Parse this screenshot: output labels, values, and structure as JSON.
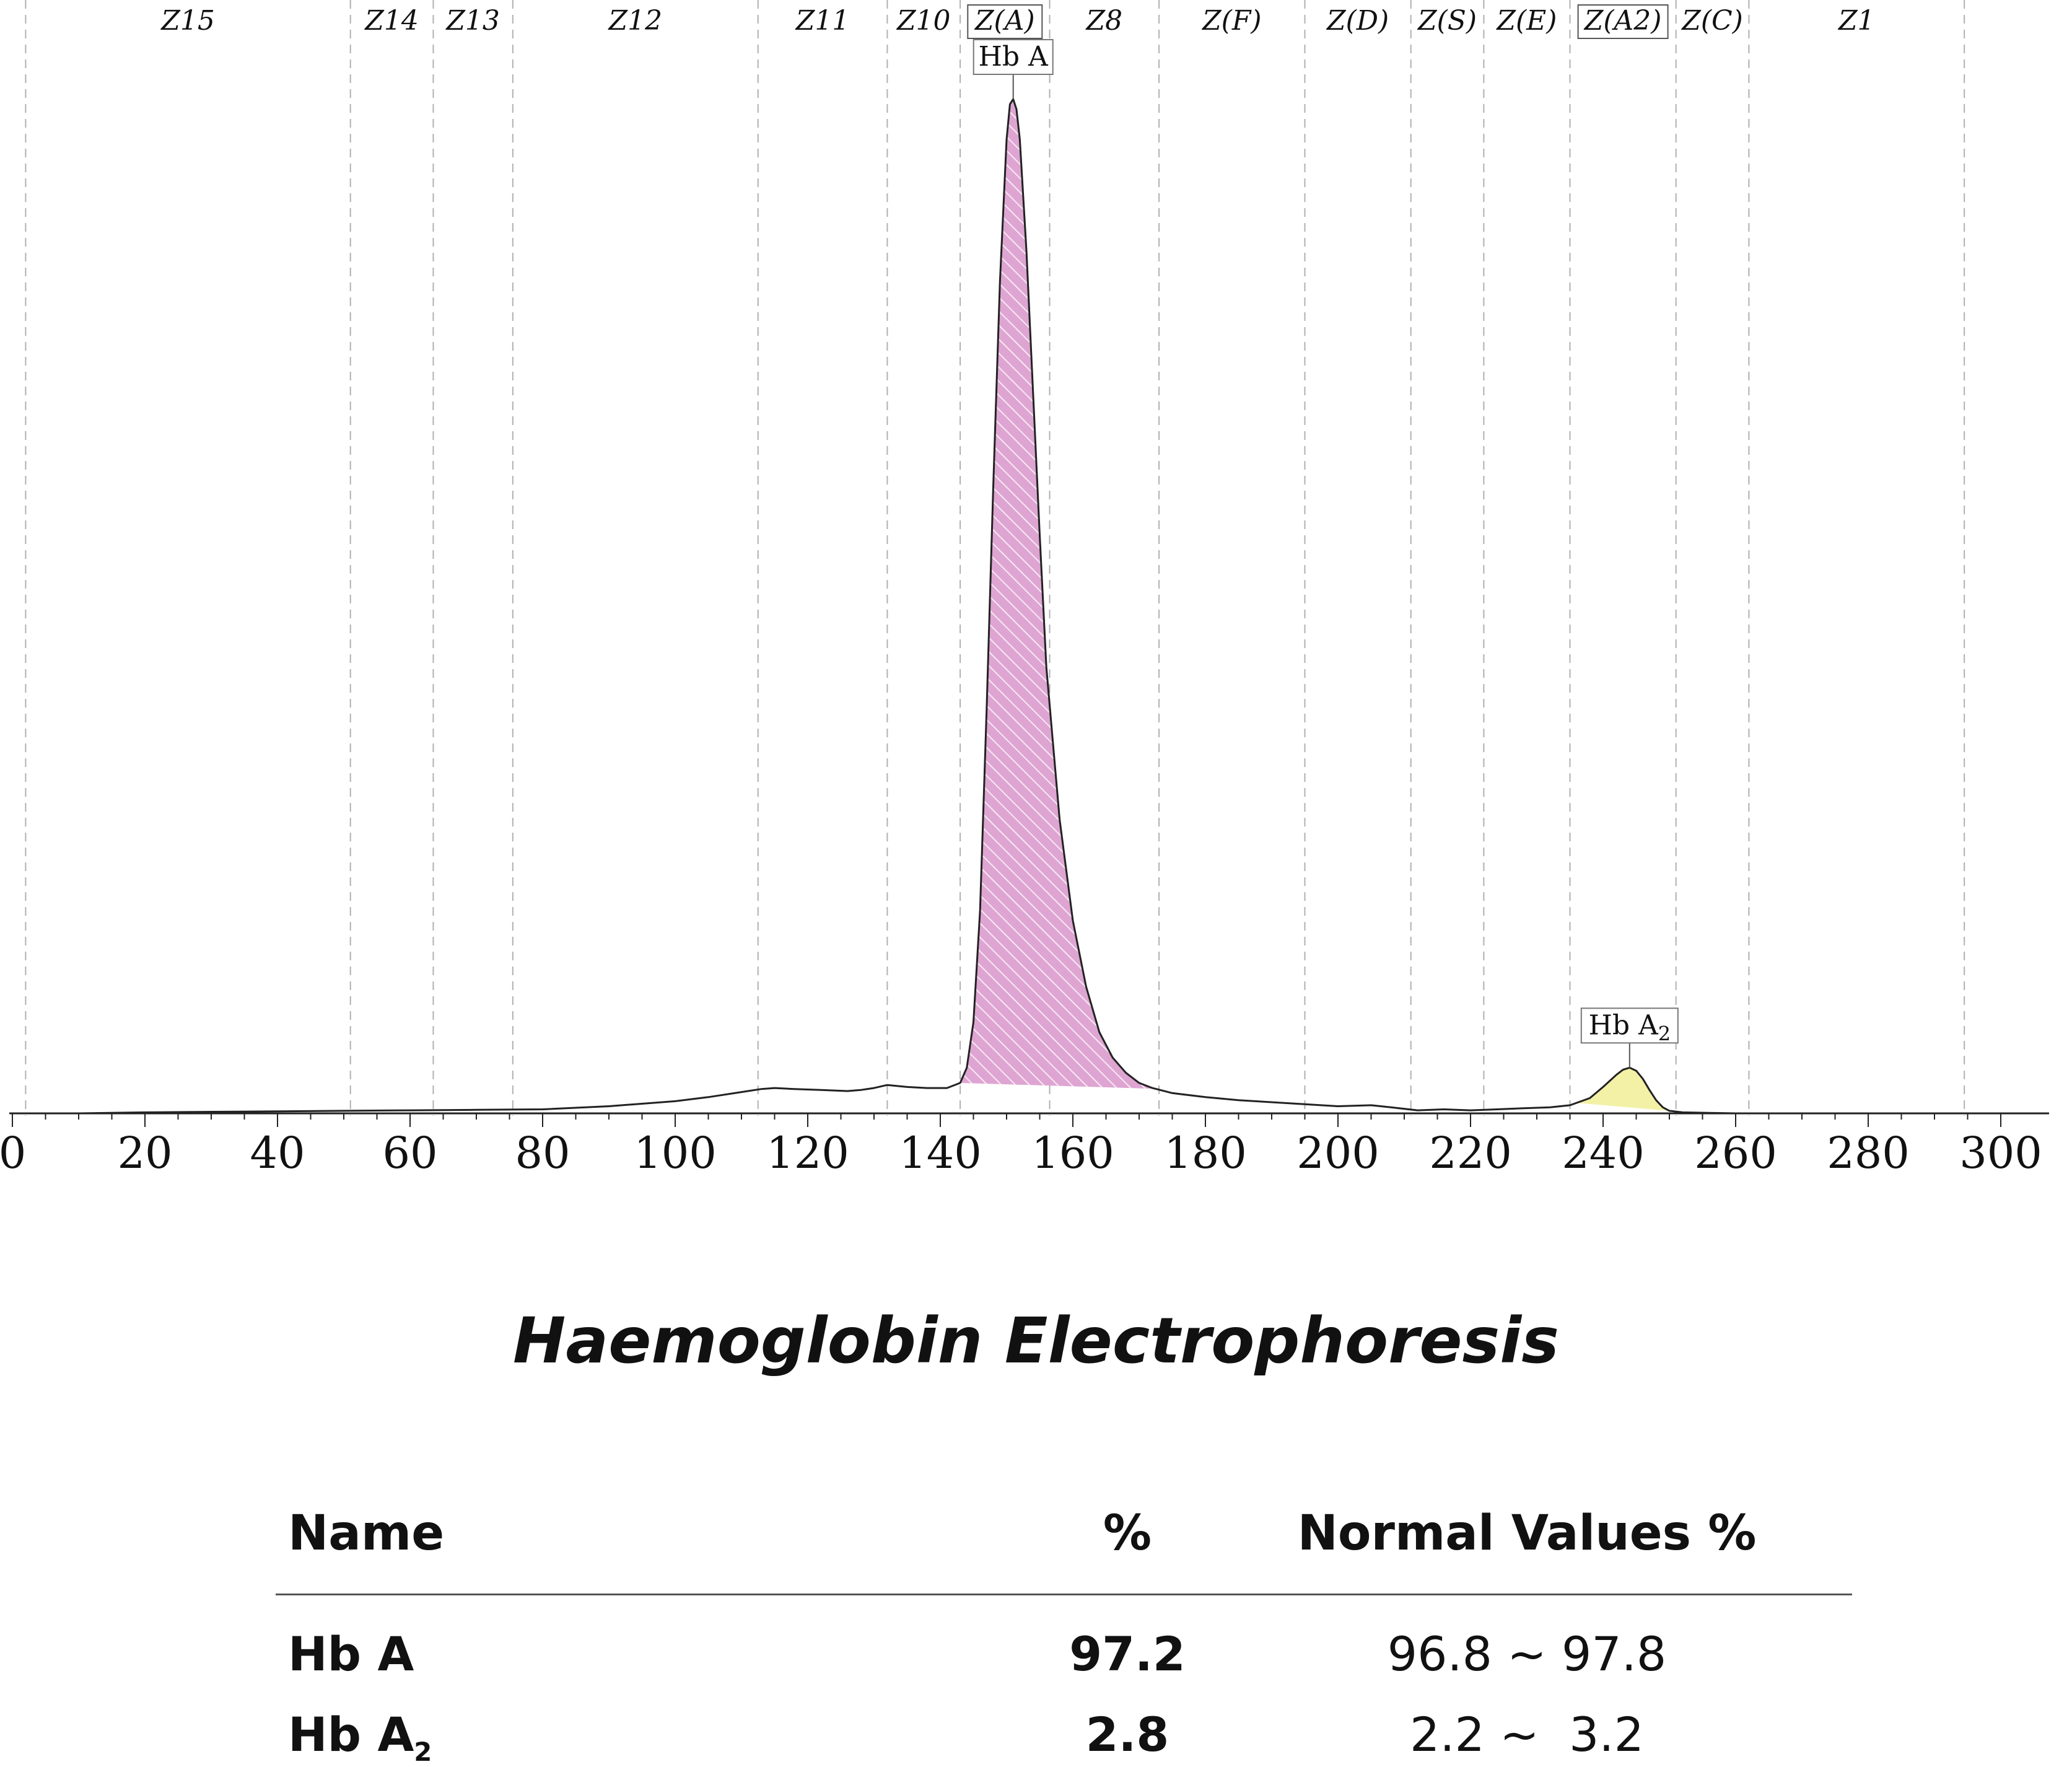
{
  "chart_data": {
    "type": "line",
    "title": "",
    "xlabel": "",
    "ylabel": "",
    "xlim": [
      0,
      305
    ],
    "ylim": [
      0,
      100
    ],
    "x_ticks": [
      0,
      20,
      40,
      60,
      80,
      100,
      120,
      140,
      160,
      180,
      200,
      220,
      240,
      260,
      280,
      300
    ],
    "zones": [
      {
        "label": "Z15",
        "from": 2,
        "to": 51,
        "boxed": false
      },
      {
        "label": "Z14",
        "from": 51,
        "to": 63.5,
        "boxed": false
      },
      {
        "label": "Z13",
        "from": 63.5,
        "to": 75.5,
        "boxed": false
      },
      {
        "label": "Z12",
        "from": 75.5,
        "to": 112.5,
        "boxed": false
      },
      {
        "label": "Z11",
        "from": 112.5,
        "to": 132,
        "boxed": false
      },
      {
        "label": "Z10",
        "from": 132,
        "to": 143,
        "boxed": false
      },
      {
        "label": "Z(A)",
        "from": 143,
        "to": 156.5,
        "boxed": true
      },
      {
        "label": "Z8",
        "from": 156.5,
        "to": 173,
        "boxed": false
      },
      {
        "label": "Z(F)",
        "from": 173,
        "to": 195,
        "boxed": false
      },
      {
        "label": "Z(D)",
        "from": 195,
        "to": 211,
        "boxed": false
      },
      {
        "label": "Z(S)",
        "from": 211,
        "to": 222,
        "boxed": false
      },
      {
        "label": "Z(E)",
        "from": 222,
        "to": 235,
        "boxed": false
      },
      {
        "label": "Z(A2)",
        "from": 235,
        "to": 251,
        "boxed": true
      },
      {
        "label": "Z(C)",
        "from": 251,
        "to": 262,
        "boxed": false
      },
      {
        "label": "Z1",
        "from": 262,
        "to": 294.5,
        "boxed": false
      }
    ],
    "series": [
      {
        "x": [
          10,
          20,
          30,
          40,
          50,
          60,
          70,
          80,
          90,
          100,
          105,
          110,
          113,
          115,
          118,
          122,
          126,
          128,
          130,
          132,
          135,
          138,
          141,
          143,
          144,
          145,
          146,
          147,
          148,
          149,
          150,
          150.5,
          151,
          151.5,
          152,
          153,
          154,
          155,
          156,
          158,
          160,
          162,
          164,
          166,
          168,
          170,
          172,
          175,
          180,
          185,
          190,
          195,
          200,
          205,
          208,
          212,
          216,
          220,
          224,
          228,
          232,
          235,
          238,
          240,
          242,
          243,
          244,
          245,
          246,
          247,
          248,
          249,
          250,
          252,
          256,
          260,
          270,
          280,
          290,
          300
        ],
        "y": [
          0,
          0.1,
          0.15,
          0.2,
          0.25,
          0.3,
          0.35,
          0.4,
          0.7,
          1.2,
          1.6,
          2.1,
          2.4,
          2.5,
          2.4,
          2.3,
          2.2,
          2.3,
          2.5,
          2.8,
          2.6,
          2.5,
          2.5,
          3,
          4.5,
          9,
          20,
          40,
          62,
          82,
          96,
          99.5,
          100,
          99,
          96,
          85,
          71,
          57,
          44,
          29,
          19,
          12.5,
          8,
          5.5,
          4,
          3,
          2.5,
          2,
          1.6,
          1.3,
          1.1,
          0.9,
          0.7,
          0.8,
          0.6,
          0.3,
          0.4,
          0.3,
          0.4,
          0.5,
          0.6,
          0.8,
          1.5,
          2.6,
          3.8,
          4.3,
          4.5,
          4.2,
          3.4,
          2.3,
          1.3,
          0.6,
          0.25,
          0.1,
          0.05,
          0,
          0,
          0,
          0,
          0
        ]
      }
    ],
    "peaks": [
      {
        "name": "Hb A",
        "label_prefix": "Hb A",
        "label_sub": "",
        "x_from": 143,
        "x_to": 172.5,
        "apex_x": 151,
        "color": "#dea5d2",
        "hatched": true
      },
      {
        "name": "Hb A2",
        "label_prefix": "Hb A",
        "label_sub": "2",
        "x_from": 236,
        "x_to": 250,
        "apex_x": 244,
        "color": "#f3f1a6",
        "hatched": false
      }
    ]
  },
  "report": {
    "title": "Haemoglobin Electrophoresis",
    "headers": {
      "name": "Name",
      "percent": "%",
      "normal": "Normal Values %"
    },
    "rows": [
      {
        "name_main": "Hb A",
        "name_sub": "",
        "percent": "97.2",
        "normal": "96.8 ~ 97.8"
      },
      {
        "name_main": "Hb A",
        "name_sub": "2",
        "percent": "2.8",
        "normal": "2.2 ~  3.2"
      }
    ]
  }
}
